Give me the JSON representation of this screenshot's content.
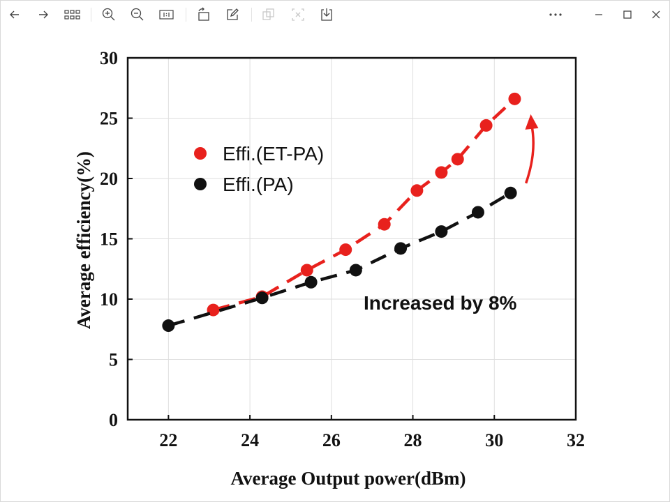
{
  "toolbar": {
    "icons": [
      "back-icon",
      "forward-icon",
      "grid-icon",
      "zoom-in-icon",
      "zoom-out-icon",
      "actual-size-icon",
      "rotate-icon",
      "edit-icon",
      "copy-icon",
      "crop-icon",
      "save-icon",
      "more-icon",
      "minimize-icon",
      "maximize-icon",
      "close-icon"
    ]
  },
  "colors": {
    "et_pa": "#e8211d",
    "pa": "#111111",
    "grid": "#dedede"
  },
  "chart_data": {
    "type": "scatter",
    "xlabel": "Average Output power(dBm)",
    "ylabel": "Average efficiency(%)",
    "xlim": [
      21,
      32
    ],
    "ylim": [
      0,
      30
    ],
    "xticks": [
      "22",
      "24",
      "26",
      "28",
      "30",
      "32"
    ],
    "yticks": [
      "0",
      "5",
      "10",
      "15",
      "20",
      "25",
      "30"
    ],
    "grid": true,
    "legend_position": "top-left",
    "series": [
      {
        "name": "Effi.(ET-PA)",
        "color": "#e8211d",
        "x": [
          23.1,
          24.3,
          25.4,
          26.35,
          27.3,
          28.1,
          28.7,
          29.1,
          29.8,
          30.5
        ],
        "y": [
          9.1,
          10.2,
          12.4,
          14.1,
          16.2,
          19.0,
          20.5,
          21.6,
          24.4,
          26.6
        ]
      },
      {
        "name": "Effi.(PA)",
        "color": "#111111",
        "x": [
          22.0,
          24.3,
          25.5,
          26.6,
          27.7,
          28.7,
          29.6,
          30.4
        ],
        "y": [
          7.8,
          10.1,
          11.4,
          12.4,
          14.2,
          15.6,
          17.2,
          18.8
        ]
      }
    ],
    "annotation": {
      "text": "Increased by 8%"
    }
  }
}
